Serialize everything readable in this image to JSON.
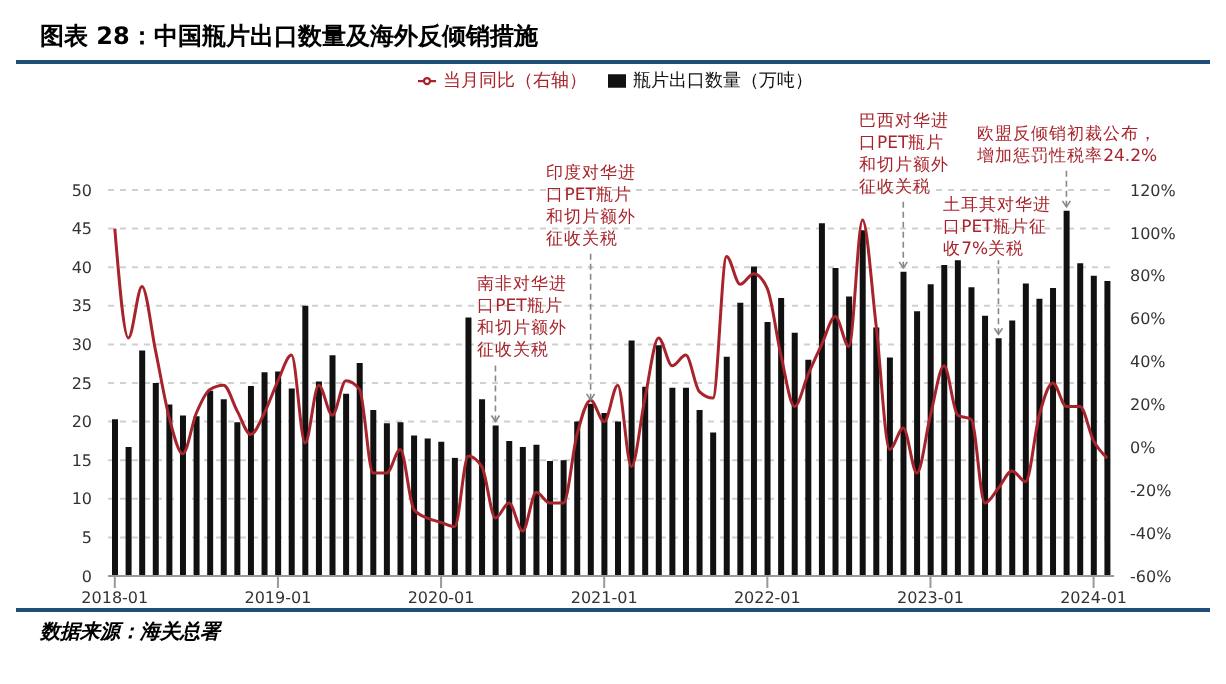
{
  "chart_data": {
    "type": "bar",
    "title": "图表 28：中国瓶片出口数量及海外反倾销措施",
    "annotations": [
      "数据来源：海关总署",
      {
        "text": "南非对华进口PET瓶片和切片额外征收关税",
        "x": "2020-05",
        "y": 19.5
      },
      {
        "text": "印度对华进口PET瓶片和切片额外征收关税",
        "x": "2020-12",
        "y": 22.3
      },
      {
        "text": "巴西对华进口PET瓶片和切片额外征收关税",
        "x": "2022-11",
        "y": 39.4
      },
      {
        "text": "土耳其对华进口PET瓶片征收7%关税",
        "x": "2023-06",
        "y": 30.8
      },
      {
        "text": "欧盟反倾销初裁公布，增加惩罚性税率24.2%",
        "x": "2023-11",
        "y": 47.3
      }
    ],
    "x": [
      "2018-01",
      "2018-02",
      "2018-03",
      "2018-04",
      "2018-05",
      "2018-06",
      "2018-07",
      "2018-08",
      "2018-09",
      "2018-10",
      "2018-11",
      "2018-12",
      "2019-01",
      "2019-02",
      "2019-03",
      "2019-04",
      "2019-05",
      "2019-06",
      "2019-07",
      "2019-08",
      "2019-09",
      "2019-10",
      "2019-11",
      "2019-12",
      "2020-01",
      "2020-02",
      "2020-03",
      "2020-04",
      "2020-05",
      "2020-06",
      "2020-07",
      "2020-08",
      "2020-09",
      "2020-10",
      "2020-11",
      "2020-12",
      "2021-01",
      "2021-02",
      "2021-03",
      "2021-04",
      "2021-05",
      "2021-06",
      "2021-07",
      "2021-08",
      "2021-09",
      "2021-10",
      "2021-11",
      "2021-12",
      "2022-01",
      "2022-02",
      "2022-03",
      "2022-04",
      "2022-05",
      "2022-06",
      "2022-07",
      "2022-08",
      "2022-09",
      "2022-10",
      "2022-11",
      "2022-12",
      "2023-01",
      "2023-02",
      "2023-03",
      "2023-04",
      "2023-05",
      "2023-06",
      "2023-07",
      "2023-08",
      "2023-09",
      "2023-10",
      "2023-11",
      "2023-12",
      "2024-01",
      "2024-02"
    ],
    "series": [
      {
        "name": "瓶片出口数量（万吨）",
        "color": "#111111",
        "values": [
          20.3,
          16.7,
          29.2,
          25.0,
          22.2,
          20.8,
          20.7,
          24.0,
          22.9,
          19.9,
          24.6,
          26.4,
          26.5,
          24.3,
          35.0,
          25.2,
          28.6,
          23.6,
          27.6,
          21.5,
          19.8,
          19.9,
          18.2,
          17.8,
          17.4,
          15.3,
          33.5,
          22.9,
          19.5,
          17.5,
          16.7,
          17.0,
          14.9,
          15.0,
          20.0,
          22.3,
          21.1,
          20.0,
          30.5,
          24.5,
          29.9,
          24.4,
          24.4,
          21.5,
          18.6,
          28.4,
          35.4,
          40.1,
          32.9,
          36.0,
          31.5,
          28.0,
          45.7,
          39.9,
          36.2,
          44.8,
          32.2,
          28.3,
          39.4,
          34.3,
          37.8,
          40.3,
          40.9,
          37.4,
          33.7,
          30.8,
          33.1,
          37.9,
          35.9,
          37.3,
          47.3,
          40.5,
          38.9,
          38.2
        ]
      },
      {
        "name": "当月同比（右轴）",
        "type": "line",
        "axis": "y2",
        "color": "#a8242c",
        "values": [
          102,
          51,
          75,
          45,
          14,
          -3,
          16,
          27,
          29,
          17,
          6,
          16,
          31,
          43,
          2,
          29,
          15,
          31,
          27,
          -12,
          -12,
          -1,
          -29,
          -33,
          -35,
          -37,
          -4,
          -9,
          -33,
          -26,
          -39,
          -21,
          -26,
          -26,
          6,
          22,
          12,
          29,
          -9,
          23,
          51,
          38,
          43,
          26,
          23,
          89,
          76,
          81,
          74,
          43,
          19,
          34,
          48,
          61,
          47,
          106,
          57,
          -1,
          9,
          -12,
          15,
          38,
          15,
          13,
          -26,
          -19,
          -11,
          -16,
          15,
          30,
          19,
          19,
          3,
          -5
        ]
      }
    ],
    "xlim": [
      "2017-12-16",
      "2024-02-16"
    ],
    "xticks": [
      "2018-01",
      "2019-01",
      "2020-01",
      "2021-01",
      "2022-01",
      "2023-01",
      "2024-01"
    ],
    "ylim": [
      0,
      50
    ],
    "yticks": [
      0,
      5,
      10,
      15,
      20,
      25,
      30,
      35,
      40,
      45,
      50
    ],
    "y2lim": [
      -60,
      120
    ],
    "y2ticks": [
      {
        "value": -60,
        "label": "-60%"
      },
      {
        "value": -40,
        "label": "-40%"
      },
      {
        "value": -20,
        "label": "-20%"
      },
      {
        "value": 0,
        "label": "0%"
      },
      {
        "value": 20,
        "label": "20%"
      },
      {
        "value": 40,
        "label": "40%"
      },
      {
        "value": 60,
        "label": "60%"
      },
      {
        "value": 80,
        "label": "80%"
      },
      {
        "value": 100,
        "label": "100%"
      },
      {
        "value": 120,
        "label": "120%"
      }
    ],
    "grid": "y",
    "legend": "top",
    "marker": "none",
    "line_style": "solid"
  }
}
